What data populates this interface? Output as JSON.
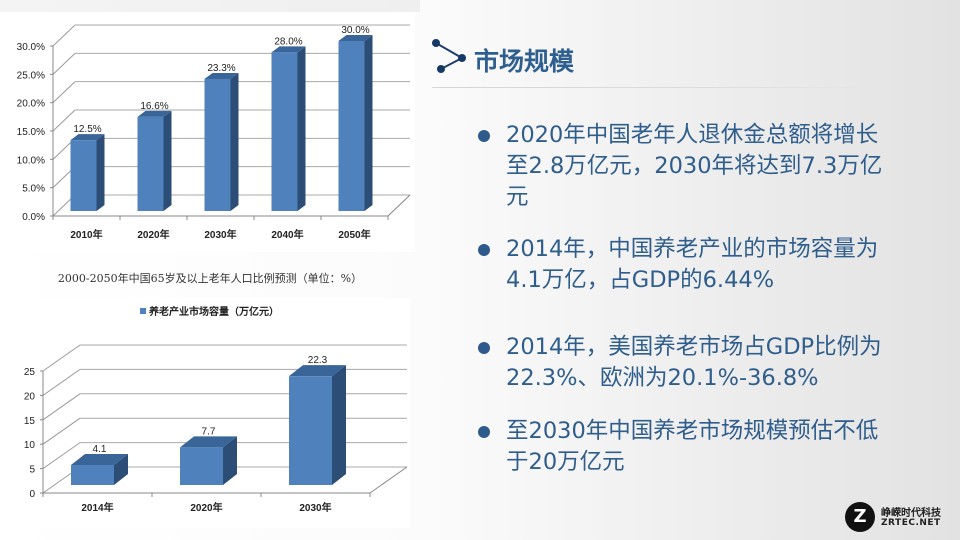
{
  "slide": {
    "title": "市场规模",
    "bullets": [
      {
        "lines": [
          "2020年中国老年人退休金总额将增长",
          "至2.8万亿元，2030年将达到7.3万亿",
          "元"
        ]
      },
      {
        "lines": [
          "2014年，中国养老产业的市场容量为",
          "4.1万亿，占GDP的6.44%"
        ]
      },
      {
        "lines": [
          "2014年，美国养老市场占GDP比例为",
          "22.3%、欧洲为20.1%-36.8%"
        ]
      },
      {
        "lines": [
          "至2030年中国养老市场规模预估不低",
          "于20万亿元"
        ]
      }
    ],
    "logo": {
      "mark": "Z",
      "name_cn": "峥嵘时代科技",
      "name_en": "ZRTEC.NET"
    },
    "colors": {
      "title": "#2e5f8f",
      "bullet_text": "#2f5d8c",
      "bar_front": "#4f81bd",
      "bar_side": "#2c4d75",
      "bar_top": "#3a6599"
    }
  },
  "chart_data": [
    {
      "type": "bar",
      "style": "3d-column",
      "title": "2000-2050年中国65岁及以上老年人口比例预测（单位：%）",
      "categories": [
        "2010年",
        "2020年",
        "2030年",
        "2040年",
        "2050年"
      ],
      "values": [
        12.5,
        16.6,
        23.3,
        28.0,
        30.0
      ],
      "data_labels": [
        "12.5%",
        "16.6%",
        "23.3%",
        "28.0%",
        "30.0%"
      ],
      "y_ticks": [
        "0.0%",
        "5.0%",
        "10.0%",
        "15.0%",
        "20.0%",
        "25.0%",
        "30.0%"
      ],
      "ylim": [
        0,
        30
      ],
      "xlabel": "",
      "ylabel": "",
      "grid": true,
      "legend": null
    },
    {
      "type": "bar",
      "style": "3d-column",
      "title": "",
      "legend": {
        "position": "top",
        "entries": [
          "养老产业市场容量（万亿元）"
        ]
      },
      "categories": [
        "2014年",
        "2020年",
        "2030年"
      ],
      "values": [
        4.1,
        7.7,
        22.3
      ],
      "data_labels": [
        "4.1",
        "7.7",
        "22.3"
      ],
      "y_ticks": [
        "0",
        "5",
        "10",
        "15",
        "20",
        "25"
      ],
      "ylim": [
        0,
        25
      ],
      "xlabel": "",
      "ylabel": "",
      "grid": true
    }
  ]
}
